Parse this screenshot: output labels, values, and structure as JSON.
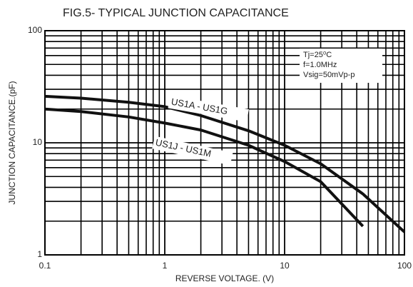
{
  "chart_data": {
    "type": "line",
    "title": "FIG.5- TYPICAL JUNCTION CAPACITANCE",
    "xlabel": "REVERSE VOLTAGE. (V)",
    "ylabel": "JUNCTION CAPACITANCE.(pF)",
    "x": [
      0.1,
      0.2,
      0.5,
      1,
      2,
      5,
      10,
      20,
      45,
      100
    ],
    "series": [
      {
        "name": "US1A - US1G",
        "color": "#111111",
        "values": [
          26,
          25,
          23,
          21,
          17.5,
          12.8,
          9.5,
          6.5,
          3.5,
          1.6
        ]
      },
      {
        "name": "US1J - US1M",
        "color": "#111111",
        "values": [
          20,
          19,
          17,
          15,
          13,
          9.5,
          6.8,
          4.5,
          1.8,
          null
        ]
      }
    ],
    "annotation": [
      "Tj=25⁰C",
      "f=1.0MHz",
      "Vsig=50mVp-p"
    ],
    "xlim": [
      0.1,
      100
    ],
    "ylim": [
      1,
      100
    ],
    "xticks": [
      0.1,
      1,
      10,
      100
    ],
    "yticks": [
      1,
      10,
      100
    ],
    "xscale": "log",
    "yscale": "log",
    "grid": true
  }
}
